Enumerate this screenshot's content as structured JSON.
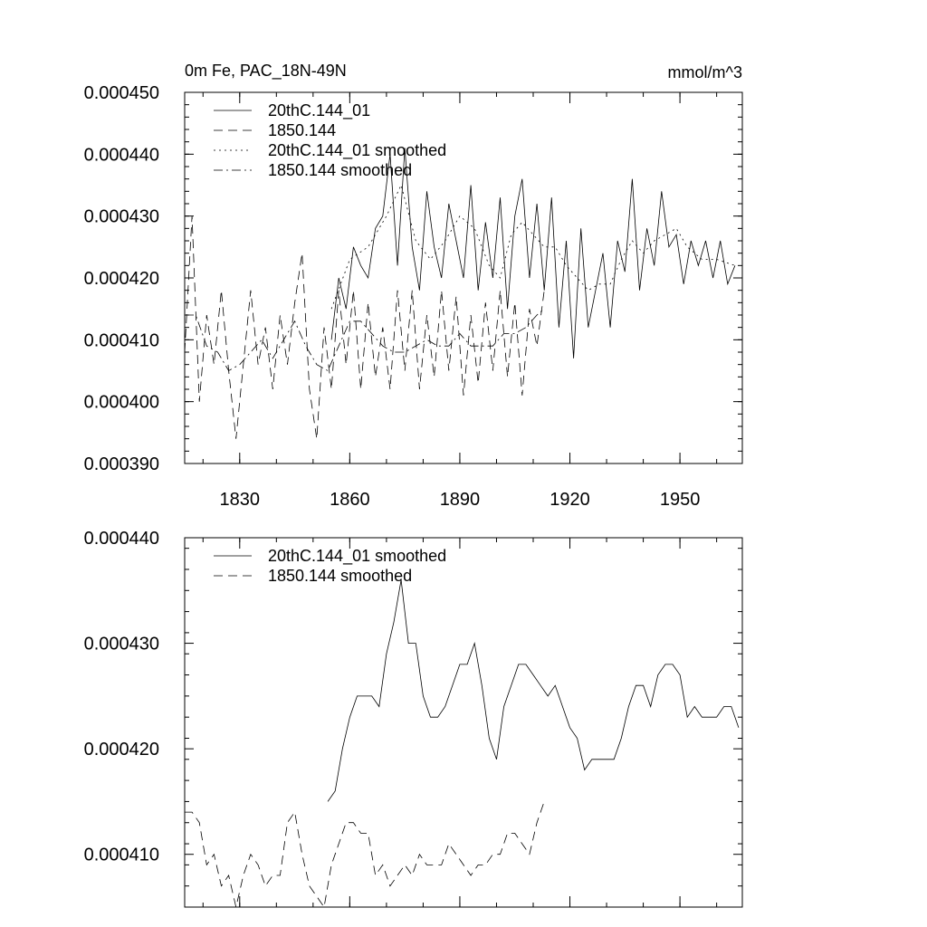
{
  "chart_data": [
    {
      "type": "line",
      "title": "0m Fe, PAC_18N-49N",
      "units_label": "mmol/m^3",
      "xlim": [
        1815,
        1967
      ],
      "ylim": [
        0.00039,
        0.00045
      ],
      "y_tick_values": [
        0.00039,
        0.0004,
        0.00041,
        0.00042,
        0.00043,
        0.00044,
        0.00045
      ],
      "y_tick_labels": [
        "0.000390",
        "0.000400",
        "0.000410",
        "0.000420",
        "0.000430",
        "0.000440",
        "0.000450"
      ],
      "x_tick_values": [
        1830,
        1860,
        1890,
        1920,
        1950
      ],
      "x_tick_labels": [
        "1830",
        "1860",
        "1890",
        "1920",
        "1950"
      ],
      "legend": [
        "20thC.144_01",
        "1850.144",
        "20thC.144_01 smoothed",
        "1850.144 smoothed"
      ],
      "series": [
        {
          "name": "20thC.144_01",
          "dash": "solid",
          "x": [
            1855,
            1857,
            1859,
            1861,
            1863,
            1865,
            1867,
            1869,
            1871,
            1873,
            1875,
            1877,
            1879,
            1881,
            1883,
            1885,
            1887,
            1889,
            1891,
            1893,
            1895,
            1897,
            1899,
            1901,
            1903,
            1905,
            1907,
            1909,
            1911,
            1913,
            1915,
            1917,
            1919,
            1921,
            1923,
            1925,
            1927,
            1929,
            1931,
            1933,
            1935,
            1937,
            1939,
            1941,
            1943,
            1945,
            1947,
            1949,
            1951,
            1953,
            1955,
            1957,
            1959,
            1961,
            1963,
            1965
          ],
          "values": [
            0.00041,
            0.00042,
            0.000415,
            0.000425,
            0.000422,
            0.00042,
            0.000428,
            0.00043,
            0.00044,
            0.000422,
            0.000441,
            0.000425,
            0.000418,
            0.000434,
            0.000425,
            0.00042,
            0.000432,
            0.000426,
            0.00042,
            0.000435,
            0.000418,
            0.000429,
            0.00042,
            0.000433,
            0.000415,
            0.00043,
            0.000436,
            0.00042,
            0.000432,
            0.000418,
            0.000433,
            0.000412,
            0.000426,
            0.000407,
            0.000428,
            0.000412,
            0.000418,
            0.000424,
            0.000412,
            0.000426,
            0.000421,
            0.000436,
            0.000418,
            0.000428,
            0.000422,
            0.000434,
            0.000425,
            0.000427,
            0.000419,
            0.000426,
            0.000422,
            0.000426,
            0.00042,
            0.000426,
            0.000419,
            0.000422
          ]
        },
        {
          "name": "1850.144",
          "dash": "dashed",
          "x": [
            1815,
            1817,
            1819,
            1821,
            1823,
            1825,
            1827,
            1829,
            1831,
            1833,
            1835,
            1837,
            1839,
            1841,
            1843,
            1845,
            1847,
            1849,
            1851,
            1853,
            1855,
            1857,
            1859,
            1861,
            1863,
            1865,
            1867,
            1869,
            1871,
            1873,
            1875,
            1877,
            1879,
            1881,
            1883,
            1885,
            1887,
            1889,
            1891,
            1893,
            1895,
            1897,
            1899,
            1901,
            1903,
            1905,
            1907,
            1909,
            1911,
            1913
          ],
          "values": [
            0.000408,
            0.00043,
            0.0004,
            0.000414,
            0.000406,
            0.000418,
            0.000405,
            0.000394,
            0.000406,
            0.000418,
            0.000406,
            0.000412,
            0.000402,
            0.000414,
            0.000406,
            0.000416,
            0.000424,
            0.000402,
            0.000394,
            0.000412,
            0.000402,
            0.000418,
            0.000406,
            0.000418,
            0.000402,
            0.000416,
            0.000404,
            0.000412,
            0.000402,
            0.000418,
            0.000405,
            0.000418,
            0.000402,
            0.000414,
            0.000404,
            0.000418,
            0.000405,
            0.000417,
            0.000401,
            0.000414,
            0.000403,
            0.000416,
            0.000405,
            0.000418,
            0.000404,
            0.000416,
            0.000401,
            0.000415,
            0.000409,
            0.000418
          ]
        },
        {
          "name": "20thC.144_01 smoothed",
          "dash": "dotted",
          "x": [
            1855,
            1860,
            1865,
            1870,
            1874,
            1878,
            1882,
            1886,
            1890,
            1894,
            1898,
            1901,
            1904,
            1907,
            1910,
            1913,
            1916,
            1919,
            1922,
            1925,
            1928,
            1931,
            1934,
            1937,
            1940,
            1943,
            1946,
            1949,
            1952,
            1956,
            1960,
            1965
          ],
          "values": [
            0.000415,
            0.000423,
            0.000425,
            0.00043,
            0.000435,
            0.000426,
            0.000423,
            0.000426,
            0.00043,
            0.000428,
            0.000422,
            0.00042,
            0.000427,
            0.000429,
            0.000427,
            0.000425,
            0.000425,
            0.000422,
            0.00042,
            0.000418,
            0.000419,
            0.000419,
            0.000423,
            0.000426,
            0.000424,
            0.000426,
            0.000427,
            0.000428,
            0.000425,
            0.000423,
            0.000423,
            0.000422
          ]
        },
        {
          "name": "1850.144 smoothed",
          "dash": "dashdot",
          "x": [
            1815,
            1818,
            1821,
            1824,
            1827,
            1830,
            1833,
            1836,
            1839,
            1842,
            1845,
            1848,
            1851,
            1854,
            1857,
            1860,
            1863,
            1866,
            1869,
            1872,
            1875,
            1878,
            1881,
            1884,
            1887,
            1890,
            1893,
            1896,
            1899,
            1902,
            1905,
            1908,
            1911,
            1913
          ],
          "values": [
            0.000414,
            0.000414,
            0.000409,
            0.000408,
            0.000405,
            0.000406,
            0.000408,
            0.00041,
            0.000407,
            0.00041,
            0.000413,
            0.000409,
            0.000406,
            0.000405,
            0.000409,
            0.000413,
            0.000413,
            0.000411,
            0.000409,
            0.000408,
            0.000408,
            0.000409,
            0.00041,
            0.000409,
            0.000409,
            0.000411,
            0.000409,
            0.000409,
            0.000409,
            0.000411,
            0.000411,
            0.000412,
            0.000414,
            0.000415
          ]
        }
      ]
    },
    {
      "type": "line",
      "title": "",
      "xlim": [
        1815,
        1967
      ],
      "ylim": [
        0.000405,
        0.00044
      ],
      "y_tick_values": [
        0.00041,
        0.00042,
        0.00043,
        0.00044
      ],
      "y_tick_labels": [
        "0.000410",
        "0.000420",
        "0.000430",
        "0.000440"
      ],
      "x_tick_values": [
        1830,
        1860,
        1890,
        1920,
        1950
      ],
      "x_tick_labels": [],
      "legend": [
        "20thC.144_01 smoothed",
        "1850.144 smoothed"
      ],
      "series": [
        {
          "name": "20thC.144_01 smoothed",
          "dash": "solid",
          "x": [
            1854,
            1856,
            1858,
            1860,
            1862,
            1864,
            1866,
            1868,
            1870,
            1872,
            1874,
            1876,
            1878,
            1880,
            1882,
            1884,
            1886,
            1888,
            1890,
            1892,
            1894,
            1896,
            1898,
            1900,
            1902,
            1904,
            1906,
            1908,
            1910,
            1912,
            1914,
            1916,
            1918,
            1920,
            1922,
            1924,
            1926,
            1928,
            1930,
            1932,
            1934,
            1936,
            1938,
            1940,
            1942,
            1944,
            1946,
            1948,
            1950,
            1952,
            1954,
            1956,
            1958,
            1960,
            1962,
            1964,
            1966
          ],
          "values": [
            0.000415,
            0.000416,
            0.00042,
            0.000423,
            0.000425,
            0.000425,
            0.000425,
            0.000424,
            0.000429,
            0.000432,
            0.000436,
            0.00043,
            0.00043,
            0.000425,
            0.000423,
            0.000423,
            0.000424,
            0.000426,
            0.000428,
            0.000428,
            0.00043,
            0.000426,
            0.000421,
            0.000419,
            0.000424,
            0.000426,
            0.000428,
            0.000428,
            0.000427,
            0.000426,
            0.000425,
            0.000426,
            0.000424,
            0.000422,
            0.000421,
            0.000418,
            0.000419,
            0.000419,
            0.000419,
            0.000419,
            0.000421,
            0.000424,
            0.000426,
            0.000426,
            0.000424,
            0.000427,
            0.000428,
            0.000428,
            0.000427,
            0.000423,
            0.000424,
            0.000423,
            0.000423,
            0.000423,
            0.000424,
            0.000424,
            0.000422
          ]
        },
        {
          "name": "1850.144 smoothed",
          "dash": "dashed",
          "x": [
            1815,
            1817,
            1819,
            1821,
            1823,
            1825,
            1827,
            1829,
            1831,
            1833,
            1835,
            1837,
            1839,
            1841,
            1843,
            1845,
            1847,
            1849,
            1851,
            1853,
            1855,
            1857,
            1859,
            1861,
            1863,
            1865,
            1867,
            1869,
            1871,
            1873,
            1875,
            1877,
            1879,
            1881,
            1883,
            1885,
            1887,
            1889,
            1891,
            1893,
            1895,
            1897,
            1899,
            1901,
            1903,
            1905,
            1907,
            1909,
            1911,
            1913
          ],
          "values": [
            0.000414,
            0.000414,
            0.000413,
            0.000409,
            0.00041,
            0.000407,
            0.000408,
            0.000405,
            0.000408,
            0.00041,
            0.000409,
            0.000407,
            0.000408,
            0.000408,
            0.000413,
            0.000414,
            0.00041,
            0.000407,
            0.000406,
            0.000405,
            0.000409,
            0.000411,
            0.000413,
            0.000413,
            0.000412,
            0.000412,
            0.000408,
            0.000409,
            0.000407,
            0.000408,
            0.000409,
            0.000408,
            0.00041,
            0.000409,
            0.000409,
            0.000409,
            0.000411,
            0.00041,
            0.000409,
            0.000408,
            0.000409,
            0.000409,
            0.00041,
            0.00041,
            0.000412,
            0.000412,
            0.000411,
            0.00041,
            0.000413,
            0.000415
          ]
        }
      ]
    }
  ]
}
